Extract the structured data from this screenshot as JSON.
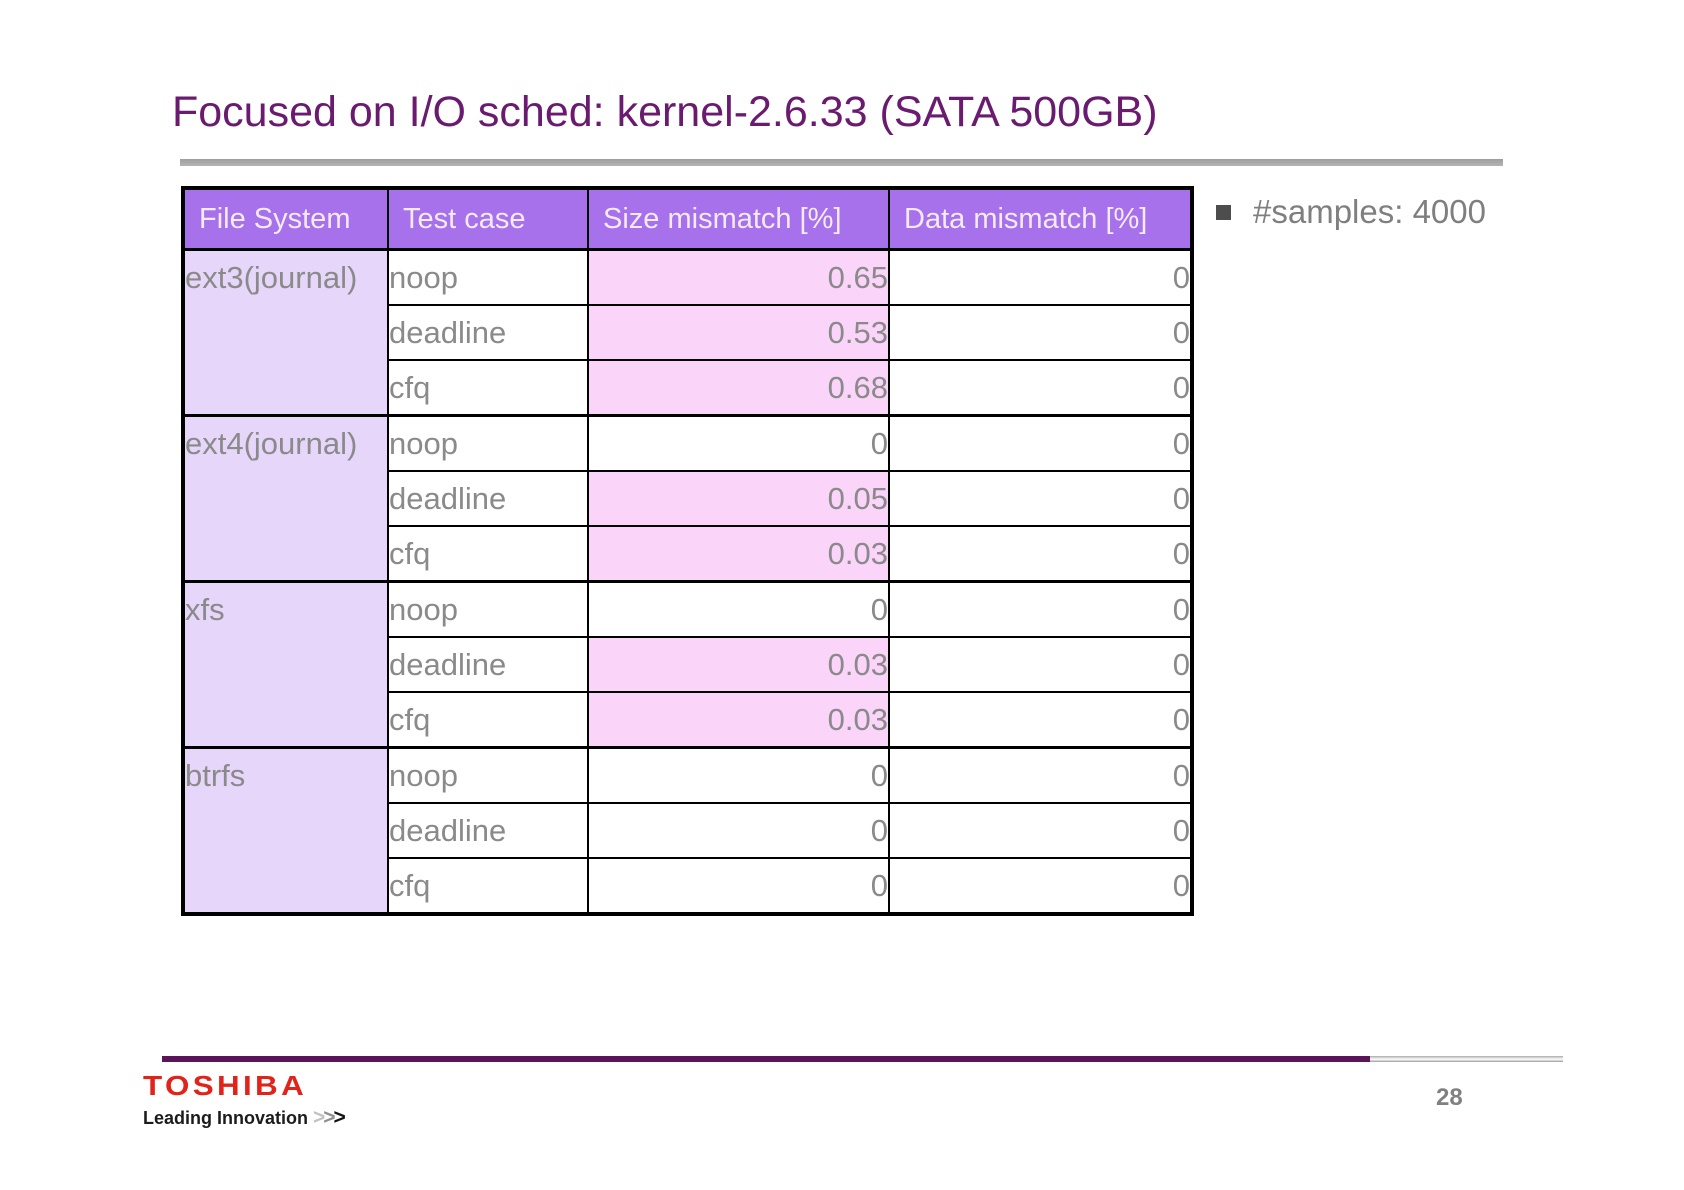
{
  "slide": {
    "title": "Focused on I/O sched: kernel-2.6.33 (SATA 500GB)"
  },
  "table": {
    "headers": [
      "File System",
      "Test case",
      "Size mismatch [%]",
      "Data mismatch [%]"
    ],
    "groups": [
      {
        "file_system": "ext3(journal)",
        "rows": [
          {
            "test_case": "noop",
            "size_mismatch": "0.65",
            "size_highlight": true,
            "data_mismatch": "0"
          },
          {
            "test_case": "deadline",
            "size_mismatch": "0.53",
            "size_highlight": true,
            "data_mismatch": "0"
          },
          {
            "test_case": "cfq",
            "size_mismatch": "0.68",
            "size_highlight": true,
            "data_mismatch": "0"
          }
        ]
      },
      {
        "file_system": "ext4(journal)",
        "rows": [
          {
            "test_case": "noop",
            "size_mismatch": "0",
            "size_highlight": false,
            "data_mismatch": "0"
          },
          {
            "test_case": "deadline",
            "size_mismatch": "0.05",
            "size_highlight": true,
            "data_mismatch": "0"
          },
          {
            "test_case": "cfq",
            "size_mismatch": "0.03",
            "size_highlight": true,
            "data_mismatch": "0"
          }
        ]
      },
      {
        "file_system": "xfs",
        "rows": [
          {
            "test_case": "noop",
            "size_mismatch": "0",
            "size_highlight": false,
            "data_mismatch": "0"
          },
          {
            "test_case": "deadline",
            "size_mismatch": "0.03",
            "size_highlight": true,
            "data_mismatch": "0"
          },
          {
            "test_case": "cfq",
            "size_mismatch": "0.03",
            "size_highlight": true,
            "data_mismatch": "0"
          }
        ]
      },
      {
        "file_system": "btrfs",
        "rows": [
          {
            "test_case": "noop",
            "size_mismatch": "0",
            "size_highlight": false,
            "data_mismatch": "0"
          },
          {
            "test_case": "deadline",
            "size_mismatch": "0",
            "size_highlight": false,
            "data_mismatch": "0"
          },
          {
            "test_case": "cfq",
            "size_mismatch": "0",
            "size_highlight": false,
            "data_mismatch": "0"
          }
        ]
      }
    ]
  },
  "notes": {
    "samples_label": "#samples: 4000"
  },
  "footer": {
    "logo_text": "TOSHIBA",
    "tagline": "Leading Innovation",
    "chevrons": [
      ">",
      ">",
      ">"
    ],
    "page_number": "28"
  },
  "colors": {
    "title_purple": "#6A1B70",
    "header_purple": "#A671EA",
    "filesystem_lavender": "#E6D6F9",
    "highlight_pink": "#FBD4FA",
    "cell_text_gray": "#8A8A8A",
    "footer_purple": "#5A1458",
    "toshiba_red": "#E2231A"
  }
}
